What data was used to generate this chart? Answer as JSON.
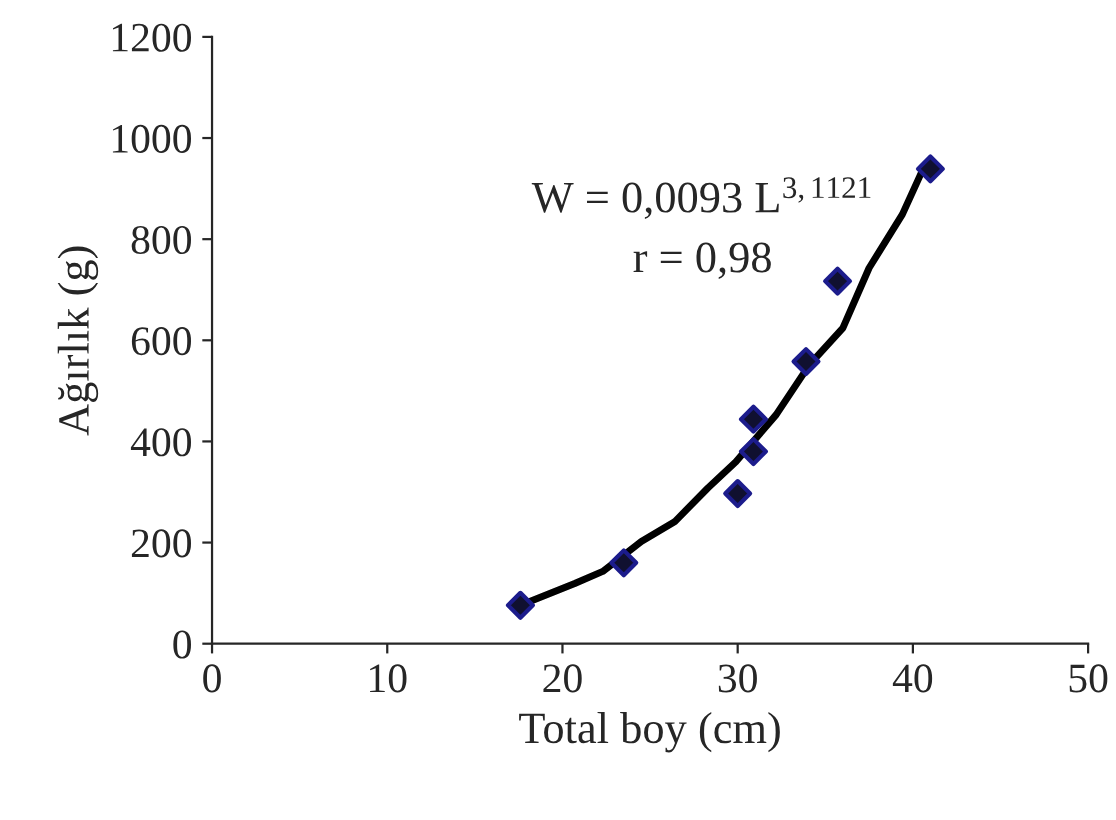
{
  "chart_data": {
    "type": "scatter",
    "xlabel": "Total boy (cm)",
    "ylabel": "Ağırlık (g)",
    "xlim": [
      0,
      50
    ],
    "xticks": [
      0,
      10,
      20,
      30,
      40,
      50
    ],
    "ylim": [
      0,
      1200
    ],
    "yticks": [
      0,
      200,
      400,
      600,
      800,
      1000,
      1200
    ],
    "annotations": [
      "W = 0,0093 L$^{3,1121}$",
      "r = 0,98"
    ],
    "series": [
      {
        "color": "#1c1c8c",
        "marker": "diamond",
        "x": [
          17.6,
          23.5,
          30.0,
          30.9,
          30.9,
          33.9,
          35.7,
          41.0
        ],
        "values": [
          76,
          160,
          297,
          380,
          444,
          558,
          717,
          939
        ]
      },
      {
        "type": "line",
        "color": "#000000",
        "marker": "none",
        "line_style": "solid",
        "x": [
          17.6,
          20.7,
          22.3,
          24.5,
          26.4,
          28.3,
          29.9,
          32.2,
          34.1,
          36.0,
          37.5,
          39.4,
          40.7
        ],
        "values": [
          76,
          119,
          143,
          202,
          241,
          308,
          360,
          453,
          552,
          624,
          743,
          849,
          948
        ]
      }
    ]
  }
}
